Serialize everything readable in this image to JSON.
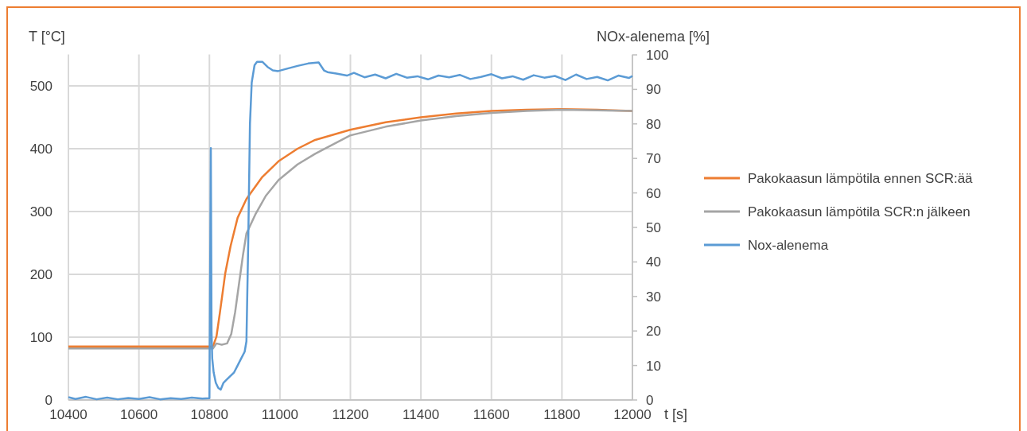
{
  "chart_data": {
    "type": "line",
    "xlabel": "t [s]",
    "ylabel": "T [°C]",
    "y2label": "NOx-alenema [%]",
    "xlim": [
      10400,
      12000
    ],
    "xticks": [
      10400,
      10600,
      10800,
      11000,
      11200,
      11400,
      11600,
      11800,
      12000
    ],
    "ylim": [
      0,
      550
    ],
    "yticks": [
      0,
      100,
      200,
      300,
      400,
      500
    ],
    "y2lim": [
      0,
      100
    ],
    "y2ticks": [
      0,
      10,
      20,
      30,
      40,
      50,
      60,
      70,
      80,
      90,
      100
    ],
    "grid": true,
    "legend": "right",
    "marker": "none",
    "line_style": "solid",
    "series": [
      {
        "name": "Pakokaasun lämpötila ennen SCR:ää",
        "color": "#ed7d31",
        "x": [
          10400,
          10600,
          10810,
          10820,
          10830,
          10845,
          10860,
          10880,
          10905,
          10950,
          10996,
          11050,
          11100,
          11199,
          11300,
          11400,
          11500,
          11600,
          11700,
          11800,
          11900,
          12000
        ],
        "values": [
          85,
          85,
          85,
          101,
          140,
          202,
          245,
          290,
          320,
          355,
          380,
          400,
          414,
          430,
          442,
          450,
          456,
          460,
          462,
          463,
          462,
          460
        ]
      },
      {
        "name": "Pakokaasun lämpötila SCR:n jälkeen",
        "color": "#a5a5a5",
        "x": [
          10400,
          10600,
          10810,
          10820,
          10835,
          10850,
          10862,
          10873,
          10883,
          10895,
          10905,
          10930,
          10960,
          10996,
          11050,
          11100,
          11199,
          11300,
          11400,
          11500,
          11600,
          11700,
          11800,
          11900,
          12000
        ],
        "values": [
          82,
          82,
          82,
          90,
          88,
          90,
          105,
          140,
          181,
          230,
          265,
          295,
          325,
          350,
          375,
          392,
          421,
          435,
          445,
          452,
          457,
          460,
          462,
          461,
          460
        ]
      },
      {
        "name": "Nox-alenema",
        "color": "#5b9bd5",
        "axis": "y2",
        "x": [
          10400,
          10420,
          10450,
          10480,
          10510,
          10540,
          10570,
          10600,
          10630,
          10660,
          10690,
          10720,
          10750,
          10780,
          10800,
          10804,
          10806,
          10808,
          10812,
          10818,
          10825,
          10832,
          10840,
          10850,
          10860,
          10870,
          10880,
          10890,
          10900,
          10905,
          10910,
          10915,
          10920,
          10928,
          10935,
          10950,
          10965,
          10980,
          10995,
          11020,
          11050,
          11080,
          11110,
          11125,
          11135,
          11160,
          11190,
          11210,
          11240,
          11270,
          11300,
          11330,
          11360,
          11390,
          11420,
          11450,
          11480,
          11510,
          11540,
          11570,
          11600,
          11630,
          11660,
          11690,
          11720,
          11750,
          11780,
          11810,
          11840,
          11870,
          11900,
          11930,
          11960,
          11990,
          12000
        ],
        "values": [
          0.8,
          0.3,
          0.9,
          0.2,
          0.7,
          0.2,
          0.6,
          0.3,
          0.8,
          0.2,
          0.5,
          0.3,
          0.7,
          0.4,
          0.5,
          73,
          20,
          12,
          8,
          5,
          3.5,
          3,
          5,
          6,
          7,
          8,
          10,
          12,
          14,
          17,
          45,
          80,
          92,
          97,
          98,
          98,
          96.5,
          95.5,
          95.3,
          96,
          96.8,
          97.5,
          97.8,
          95.5,
          95,
          94.6,
          94,
          94.8,
          93.5,
          94.3,
          93.2,
          94.5,
          93.4,
          93.8,
          92.9,
          94,
          93.5,
          94.2,
          93,
          93.6,
          94.4,
          93.2,
          93.8,
          92.8,
          94.1,
          93.4,
          93.9,
          92.7,
          94.3,
          93,
          93.6,
          92.6,
          94,
          93.3,
          93.9
        ]
      }
    ]
  }
}
